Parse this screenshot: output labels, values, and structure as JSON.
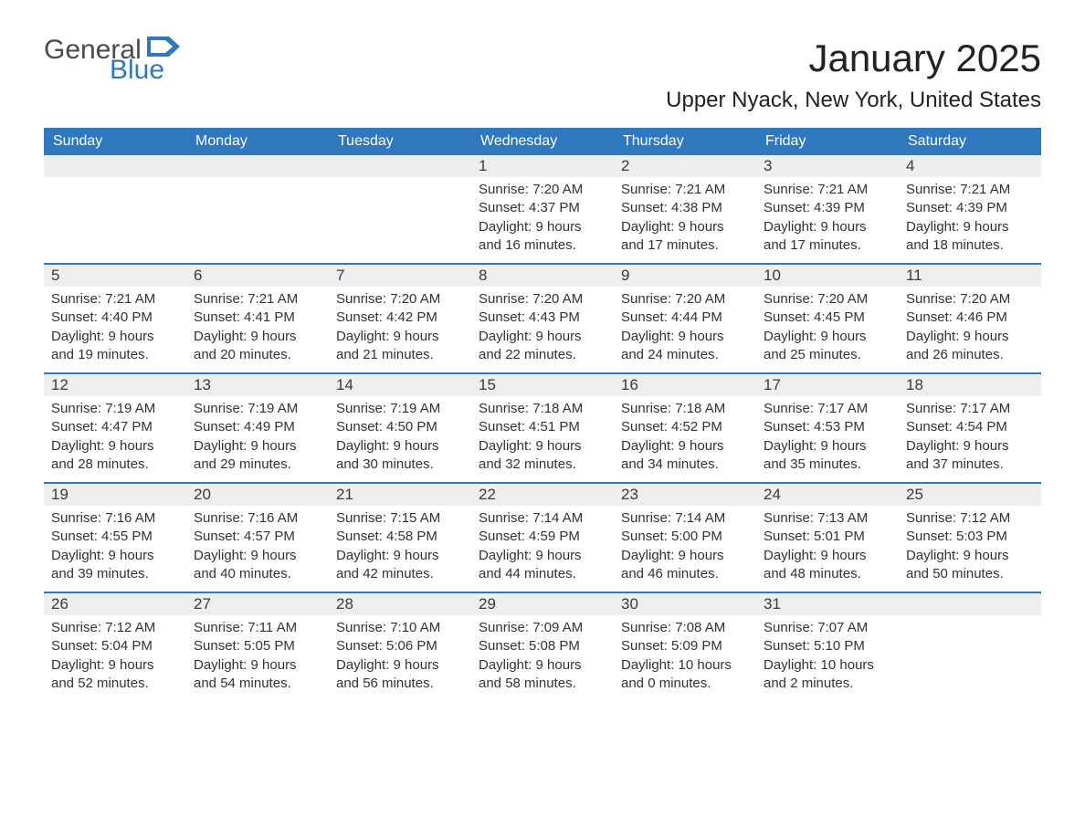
{
  "logo": {
    "word1": "General",
    "word2": "Blue",
    "flag_color": "#2f78bf"
  },
  "title": "January 2025",
  "location": "Upper Nyack, New York, United States",
  "colors": {
    "header_bg": "#2f78bf",
    "header_text": "#ffffff",
    "daynum_bg": "#eeeeee",
    "week_border": "#2f78bf",
    "body_text": "#333333",
    "page_bg": "#ffffff"
  },
  "typography": {
    "title_fontsize": 42,
    "location_fontsize": 24,
    "dow_fontsize": 16,
    "daynum_fontsize": 17,
    "body_fontsize": 15
  },
  "days_of_week": [
    "Sunday",
    "Monday",
    "Tuesday",
    "Wednesday",
    "Thursday",
    "Friday",
    "Saturday"
  ],
  "weeks": [
    [
      {
        "blank": true
      },
      {
        "blank": true
      },
      {
        "blank": true
      },
      {
        "num": "1",
        "sunrise": "Sunrise: 7:20 AM",
        "sunset": "Sunset: 4:37 PM",
        "dl1": "Daylight: 9 hours",
        "dl2": "and 16 minutes."
      },
      {
        "num": "2",
        "sunrise": "Sunrise: 7:21 AM",
        "sunset": "Sunset: 4:38 PM",
        "dl1": "Daylight: 9 hours",
        "dl2": "and 17 minutes."
      },
      {
        "num": "3",
        "sunrise": "Sunrise: 7:21 AM",
        "sunset": "Sunset: 4:39 PM",
        "dl1": "Daylight: 9 hours",
        "dl2": "and 17 minutes."
      },
      {
        "num": "4",
        "sunrise": "Sunrise: 7:21 AM",
        "sunset": "Sunset: 4:39 PM",
        "dl1": "Daylight: 9 hours",
        "dl2": "and 18 minutes."
      }
    ],
    [
      {
        "num": "5",
        "sunrise": "Sunrise: 7:21 AM",
        "sunset": "Sunset: 4:40 PM",
        "dl1": "Daylight: 9 hours",
        "dl2": "and 19 minutes."
      },
      {
        "num": "6",
        "sunrise": "Sunrise: 7:21 AM",
        "sunset": "Sunset: 4:41 PM",
        "dl1": "Daylight: 9 hours",
        "dl2": "and 20 minutes."
      },
      {
        "num": "7",
        "sunrise": "Sunrise: 7:20 AM",
        "sunset": "Sunset: 4:42 PM",
        "dl1": "Daylight: 9 hours",
        "dl2": "and 21 minutes."
      },
      {
        "num": "8",
        "sunrise": "Sunrise: 7:20 AM",
        "sunset": "Sunset: 4:43 PM",
        "dl1": "Daylight: 9 hours",
        "dl2": "and 22 minutes."
      },
      {
        "num": "9",
        "sunrise": "Sunrise: 7:20 AM",
        "sunset": "Sunset: 4:44 PM",
        "dl1": "Daylight: 9 hours",
        "dl2": "and 24 minutes."
      },
      {
        "num": "10",
        "sunrise": "Sunrise: 7:20 AM",
        "sunset": "Sunset: 4:45 PM",
        "dl1": "Daylight: 9 hours",
        "dl2": "and 25 minutes."
      },
      {
        "num": "11",
        "sunrise": "Sunrise: 7:20 AM",
        "sunset": "Sunset: 4:46 PM",
        "dl1": "Daylight: 9 hours",
        "dl2": "and 26 minutes."
      }
    ],
    [
      {
        "num": "12",
        "sunrise": "Sunrise: 7:19 AM",
        "sunset": "Sunset: 4:47 PM",
        "dl1": "Daylight: 9 hours",
        "dl2": "and 28 minutes."
      },
      {
        "num": "13",
        "sunrise": "Sunrise: 7:19 AM",
        "sunset": "Sunset: 4:49 PM",
        "dl1": "Daylight: 9 hours",
        "dl2": "and 29 minutes."
      },
      {
        "num": "14",
        "sunrise": "Sunrise: 7:19 AM",
        "sunset": "Sunset: 4:50 PM",
        "dl1": "Daylight: 9 hours",
        "dl2": "and 30 minutes."
      },
      {
        "num": "15",
        "sunrise": "Sunrise: 7:18 AM",
        "sunset": "Sunset: 4:51 PM",
        "dl1": "Daylight: 9 hours",
        "dl2": "and 32 minutes."
      },
      {
        "num": "16",
        "sunrise": "Sunrise: 7:18 AM",
        "sunset": "Sunset: 4:52 PM",
        "dl1": "Daylight: 9 hours",
        "dl2": "and 34 minutes."
      },
      {
        "num": "17",
        "sunrise": "Sunrise: 7:17 AM",
        "sunset": "Sunset: 4:53 PM",
        "dl1": "Daylight: 9 hours",
        "dl2": "and 35 minutes."
      },
      {
        "num": "18",
        "sunrise": "Sunrise: 7:17 AM",
        "sunset": "Sunset: 4:54 PM",
        "dl1": "Daylight: 9 hours",
        "dl2": "and 37 minutes."
      }
    ],
    [
      {
        "num": "19",
        "sunrise": "Sunrise: 7:16 AM",
        "sunset": "Sunset: 4:55 PM",
        "dl1": "Daylight: 9 hours",
        "dl2": "and 39 minutes."
      },
      {
        "num": "20",
        "sunrise": "Sunrise: 7:16 AM",
        "sunset": "Sunset: 4:57 PM",
        "dl1": "Daylight: 9 hours",
        "dl2": "and 40 minutes."
      },
      {
        "num": "21",
        "sunrise": "Sunrise: 7:15 AM",
        "sunset": "Sunset: 4:58 PM",
        "dl1": "Daylight: 9 hours",
        "dl2": "and 42 minutes."
      },
      {
        "num": "22",
        "sunrise": "Sunrise: 7:14 AM",
        "sunset": "Sunset: 4:59 PM",
        "dl1": "Daylight: 9 hours",
        "dl2": "and 44 minutes."
      },
      {
        "num": "23",
        "sunrise": "Sunrise: 7:14 AM",
        "sunset": "Sunset: 5:00 PM",
        "dl1": "Daylight: 9 hours",
        "dl2": "and 46 minutes."
      },
      {
        "num": "24",
        "sunrise": "Sunrise: 7:13 AM",
        "sunset": "Sunset: 5:01 PM",
        "dl1": "Daylight: 9 hours",
        "dl2": "and 48 minutes."
      },
      {
        "num": "25",
        "sunrise": "Sunrise: 7:12 AM",
        "sunset": "Sunset: 5:03 PM",
        "dl1": "Daylight: 9 hours",
        "dl2": "and 50 minutes."
      }
    ],
    [
      {
        "num": "26",
        "sunrise": "Sunrise: 7:12 AM",
        "sunset": "Sunset: 5:04 PM",
        "dl1": "Daylight: 9 hours",
        "dl2": "and 52 minutes."
      },
      {
        "num": "27",
        "sunrise": "Sunrise: 7:11 AM",
        "sunset": "Sunset: 5:05 PM",
        "dl1": "Daylight: 9 hours",
        "dl2": "and 54 minutes."
      },
      {
        "num": "28",
        "sunrise": "Sunrise: 7:10 AM",
        "sunset": "Sunset: 5:06 PM",
        "dl1": "Daylight: 9 hours",
        "dl2": "and 56 minutes."
      },
      {
        "num": "29",
        "sunrise": "Sunrise: 7:09 AM",
        "sunset": "Sunset: 5:08 PM",
        "dl1": "Daylight: 9 hours",
        "dl2": "and 58 minutes."
      },
      {
        "num": "30",
        "sunrise": "Sunrise: 7:08 AM",
        "sunset": "Sunset: 5:09 PM",
        "dl1": "Daylight: 10 hours",
        "dl2": "and 0 minutes."
      },
      {
        "num": "31",
        "sunrise": "Sunrise: 7:07 AM",
        "sunset": "Sunset: 5:10 PM",
        "dl1": "Daylight: 10 hours",
        "dl2": "and 2 minutes."
      },
      {
        "blank": true
      }
    ]
  ]
}
